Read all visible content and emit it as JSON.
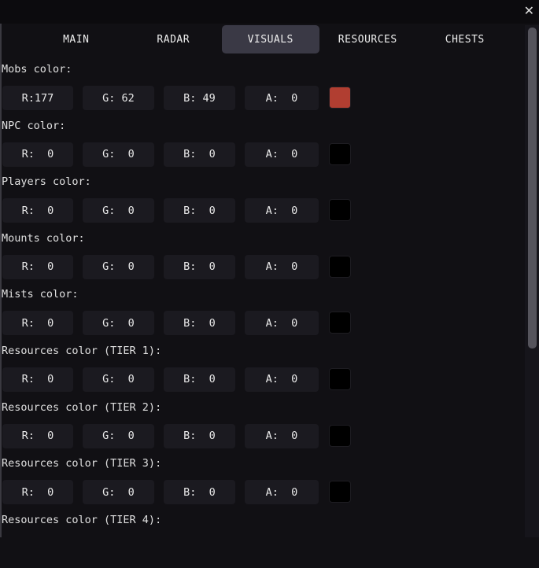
{
  "window": {
    "close_icon": "close-icon"
  },
  "tabs": [
    {
      "label": "MAIN"
    },
    {
      "label": "RADAR"
    },
    {
      "label": "VISUALS",
      "active": true
    },
    {
      "label": "RESOURCES"
    },
    {
      "label": "CHESTS"
    }
  ],
  "sections": [
    {
      "label": "Mobs color:",
      "r": "R:177",
      "g": "G: 62",
      "b": "B: 49",
      "a": "A:  0",
      "swatch": "#b13e31"
    },
    {
      "label": "NPC color:",
      "r": "R:  0",
      "g": "G:  0",
      "b": "B:  0",
      "a": "A:  0",
      "swatch": "#000000"
    },
    {
      "label": "Players color:",
      "r": "R:  0",
      "g": "G:  0",
      "b": "B:  0",
      "a": "A:  0",
      "swatch": "#000000"
    },
    {
      "label": "Mounts color:",
      "r": "R:  0",
      "g": "G:  0",
      "b": "B:  0",
      "a": "A:  0",
      "swatch": "#000000"
    },
    {
      "label": "Mists color:",
      "r": "R:  0",
      "g": "G:  0",
      "b": "B:  0",
      "a": "A:  0",
      "swatch": "#000000"
    },
    {
      "label": "Resources color (TIER 1):",
      "r": "R:  0",
      "g": "G:  0",
      "b": "B:  0",
      "a": "A:  0",
      "swatch": "#000000"
    },
    {
      "label": "Resources color (TIER 2):",
      "r": "R:  0",
      "g": "G:  0",
      "b": "B:  0",
      "a": "A:  0",
      "swatch": "#000000"
    },
    {
      "label": "Resources color (TIER 3):",
      "r": "R:  0",
      "g": "G:  0",
      "b": "B:  0",
      "a": "A:  0",
      "swatch": "#000000"
    },
    {
      "label": "Resources color (TIER 4):"
    }
  ]
}
